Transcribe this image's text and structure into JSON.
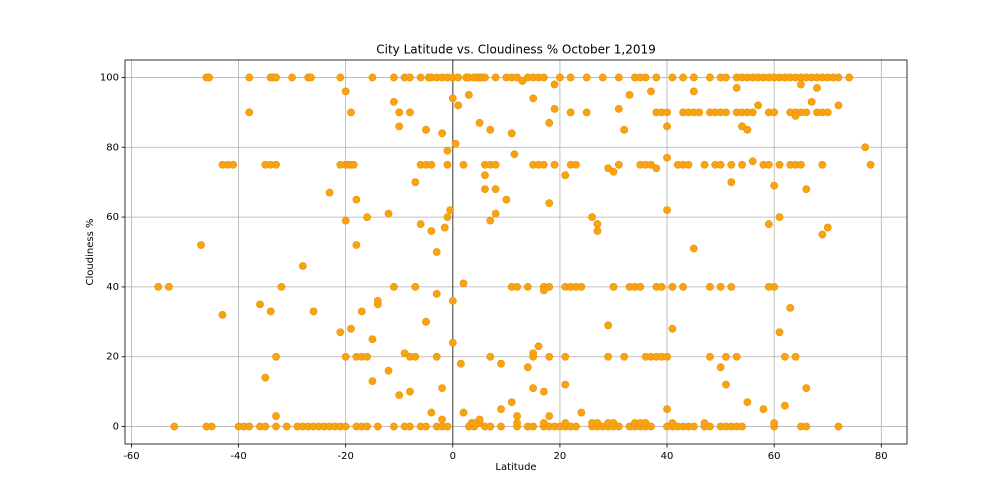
{
  "chart_data": {
    "type": "scatter",
    "title": "City Latitude vs. Cloudiness % October 1,2019",
    "x_label": "Latitude",
    "y_label": "Cloudiness %",
    "xlim": [
      -61.2,
      84.8
    ],
    "ylim": [
      -5,
      105
    ],
    "xticks": [
      -60,
      -40,
      -20,
      0,
      20,
      40,
      60,
      80
    ],
    "yticks": [
      0,
      20,
      40,
      60,
      80,
      100
    ],
    "grid": true,
    "axvline": 0,
    "color": "#f9a30f",
    "x": [
      -46,
      -45.5,
      -38,
      -34,
      -33.5,
      -33,
      -30,
      -27,
      -26.5,
      -21,
      -15,
      -11,
      -9,
      -8,
      -6,
      -4.5,
      -4,
      -3,
      -2,
      -1,
      0,
      1,
      2.5,
      3,
      4,
      4.5,
      5,
      5.5,
      6,
      8,
      10,
      11,
      12,
      14,
      15,
      16,
      17,
      20,
      22,
      25,
      28,
      31,
      34,
      35,
      36,
      38,
      41,
      43,
      45,
      48,
      50,
      51,
      53,
      54,
      55,
      56,
      57,
      58,
      59,
      60,
      61,
      62,
      63,
      64,
      65,
      66,
      67,
      68,
      69,
      70,
      71,
      72,
      74,
      -52,
      -46,
      -45,
      -40,
      -39,
      -38,
      -36,
      -35,
      -33,
      -31,
      -29,
      -28,
      -27,
      -26,
      -25,
      -24,
      -23,
      -22,
      -21,
      -20,
      -18,
      -17,
      -16,
      -14,
      -11,
      -9,
      -8,
      -6,
      -5,
      -3,
      -2,
      -1,
      3,
      4,
      6,
      7,
      9,
      12,
      14,
      15,
      17,
      18,
      19,
      20,
      21,
      22,
      23,
      26,
      27,
      28,
      29,
      30,
      31,
      33,
      34,
      35,
      36,
      37,
      40,
      41,
      42,
      43,
      44,
      45,
      47,
      48,
      50,
      51,
      52,
      53,
      54,
      60,
      65,
      66,
      72,
      3.5,
      5,
      12,
      17,
      21,
      26,
      27,
      29,
      30,
      34,
      35,
      36,
      41,
      47,
      60,
      -43,
      -42,
      -41,
      -35,
      -34,
      -33,
      -21,
      -20,
      -19.5,
      -19,
      -18.5,
      -6,
      -5,
      -4,
      -1,
      2,
      6,
      7,
      8,
      15,
      16,
      17,
      19,
      22,
      23,
      31,
      35,
      36,
      37,
      42,
      43,
      44,
      47,
      49,
      50,
      52,
      54,
      58,
      59,
      61,
      63,
      64,
      65,
      69,
      78,
      -38,
      -19,
      -10,
      -8,
      25,
      38,
      39,
      40,
      43,
      44,
      45,
      46,
      48,
      49,
      50,
      51,
      53,
      54,
      55,
      56,
      59,
      60,
      63,
      64,
      65,
      66,
      68,
      69,
      70,
      -55,
      -53,
      -32,
      -11,
      -7,
      11,
      12,
      14,
      17,
      18,
      21,
      22,
      23,
      24,
      30,
      33,
      34,
      35,
      38,
      39,
      41,
      43,
      48,
      50,
      52,
      59,
      60,
      -20,
      -18,
      -17,
      -16,
      -8,
      -7,
      -3,
      7,
      15,
      18,
      21,
      29,
      32,
      36,
      37,
      38,
      39,
      40,
      48,
      51,
      53,
      62,
      64,
      -47,
      -43,
      -36,
      -35,
      -34,
      -33,
      -33,
      -28,
      -26,
      -23,
      -21,
      -20,
      -20,
      -19,
      -18,
      -18,
      -17,
      -16,
      -15,
      -15,
      -14,
      -14,
      -12,
      -12,
      -11,
      -10,
      -10,
      -9,
      -8,
      -7,
      -6,
      -5,
      -5,
      -4,
      -4,
      -3,
      -3,
      -2,
      -2,
      -2,
      -1.5,
      -1,
      -1,
      -0.5,
      0,
      0,
      0,
      0.5,
      1,
      1.5,
      2,
      2,
      3,
      4,
      5,
      5,
      6,
      6,
      7,
      7,
      8,
      8,
      9,
      9,
      10,
      11,
      11,
      11.5,
      12,
      13,
      14,
      15,
      15,
      15,
      16,
      17,
      17,
      18,
      18,
      18,
      19,
      19,
      21,
      21,
      22,
      24,
      26,
      27,
      27,
      29,
      29,
      30,
      31,
      32,
      33,
      37,
      38,
      40,
      40,
      40,
      41,
      40,
      45,
      45,
      50,
      51,
      52,
      53,
      54,
      55,
      55,
      56,
      57,
      58,
      59,
      60,
      61,
      61,
      62,
      63,
      64,
      65,
      66,
      66,
      67,
      68,
      69,
      70,
      72,
      77
    ],
    "y": [
      100,
      100,
      100,
      100,
      100,
      100,
      100,
      100,
      100,
      100,
      100,
      100,
      100,
      100,
      100,
      100,
      100,
      100,
      100,
      100,
      100,
      100,
      100,
      100,
      100,
      100,
      100,
      100,
      100,
      100,
      100,
      100,
      100,
      100,
      100,
      100,
      100,
      100,
      100,
      100,
      100,
      100,
      100,
      100,
      100,
      100,
      100,
      100,
      100,
      100,
      100,
      100,
      100,
      100,
      100,
      100,
      100,
      100,
      100,
      100,
      100,
      100,
      100,
      100,
      100,
      100,
      100,
      100,
      100,
      100,
      100,
      100,
      100,
      0,
      0,
      0,
      0,
      0,
      0,
      0,
      0,
      0,
      0,
      0,
      0,
      0,
      0,
      0,
      0,
      0,
      0,
      0,
      0,
      0,
      0,
      0,
      0,
      0,
      0,
      0,
      0,
      0,
      0,
      0,
      0,
      0,
      0,
      0,
      0,
      0,
      0,
      0,
      0,
      0,
      0,
      0,
      0,
      0,
      0,
      0,
      0,
      0,
      0,
      0,
      0,
      0,
      0,
      0,
      0,
      0,
      0,
      0,
      0,
      0,
      0,
      0,
      0,
      0,
      0,
      0,
      0,
      0,
      0,
      0,
      0,
      0,
      0,
      0,
      1,
      1,
      1,
      1,
      1,
      1,
      1,
      1,
      1,
      1,
      1,
      1,
      1,
      1,
      1,
      75,
      75,
      75,
      75,
      75,
      75,
      75,
      75,
      75,
      75,
      75,
      75,
      75,
      75,
      75,
      75,
      75,
      75,
      75,
      75,
      75,
      75,
      75,
      75,
      75,
      75,
      75,
      75,
      75,
      75,
      75,
      75,
      75,
      75,
      75,
      75,
      75,
      75,
      75,
      75,
      75,
      75,
      75,
      75,
      75,
      90,
      90,
      90,
      90,
      90,
      90,
      90,
      90,
      90,
      90,
      90,
      90,
      90,
      90,
      90,
      90,
      90,
      90,
      90,
      90,
      90,
      90,
      90,
      90,
      90,
      90,
      90,
      90,
      90,
      40,
      40,
      40,
      40,
      40,
      40,
      40,
      40,
      40,
      40,
      40,
      40,
      40,
      40,
      40,
      40,
      40,
      40,
      40,
      40,
      40,
      40,
      40,
      40,
      40,
      40,
      40,
      20,
      20,
      20,
      20,
      20,
      20,
      20,
      20,
      20,
      20,
      20,
      20,
      20,
      20,
      20,
      20,
      20,
      20,
      20,
      20,
      20,
      20,
      20,
      52,
      32,
      35,
      14,
      33,
      20,
      3,
      46,
      33,
      67,
      27,
      59,
      96,
      28,
      52,
      65,
      33,
      60,
      13,
      25,
      35,
      36,
      61,
      16,
      93,
      86,
      9,
      21,
      10,
      70,
      58,
      30,
      85,
      56,
      4,
      50,
      38,
      84,
      11,
      2,
      57,
      60,
      79,
      62,
      36,
      24,
      94,
      81,
      92,
      18,
      41,
      4,
      95,
      1,
      87,
      2,
      72,
      68,
      59,
      85,
      61,
      68,
      5,
      18,
      65,
      84,
      7,
      78,
      3,
      99,
      17,
      94,
      11,
      21,
      23,
      10,
      39,
      87,
      64,
      3,
      98,
      91,
      72,
      12,
      90,
      4,
      60,
      58,
      56,
      29,
      74,
      73,
      91,
      85,
      95,
      96,
      74,
      86,
      62,
      5,
      28,
      77,
      51,
      96,
      17,
      12,
      70,
      97,
      86,
      85,
      7,
      76,
      92,
      5,
      58,
      69,
      27,
      60,
      6,
      34,
      89,
      98,
      68,
      11,
      93,
      97,
      55,
      57,
      92,
      80
    ]
  }
}
